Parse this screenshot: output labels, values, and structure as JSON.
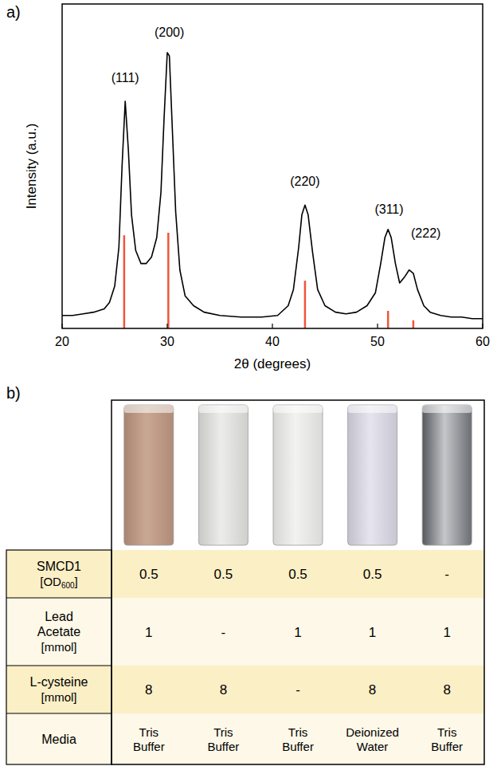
{
  "chart_data": {
    "type": "line",
    "panel_label": "a)",
    "x_label": "2θ (degrees)",
    "y_label": "Intensity (a.u.)",
    "xlim": [
      20,
      60
    ],
    "xticks": [
      20,
      30,
      40,
      50,
      60
    ],
    "ylim": [
      0,
      100
    ],
    "yticks": [],
    "tick_labels": "x",
    "grid": false,
    "series": [
      {
        "type": "bar",
        "color": "#f0553a",
        "x": [
          25.9,
          30.1,
          43.1,
          51.0,
          53.4
        ],
        "values": [
          28.7,
          29.5,
          14.7,
          5.4,
          2.5
        ]
      },
      {
        "type": "line",
        "color": "#000000",
        "x": [
          20,
          21,
          22,
          23,
          24,
          24.5,
          25,
          25.4,
          25.7,
          26.0,
          26.3,
          26.6,
          27,
          27.5,
          28,
          28.5,
          29,
          29.4,
          29.7,
          30.0,
          30.2,
          30.5,
          30.8,
          31.2,
          31.7,
          32.5,
          33.5,
          35,
          37,
          39,
          40.5,
          41.5,
          42.0,
          42.5,
          42.8,
          43.1,
          43.4,
          43.8,
          44.3,
          45,
          46,
          47,
          48,
          49,
          49.8,
          50.3,
          50.7,
          51.0,
          51.3,
          51.7,
          52.1,
          52.6,
          53.0,
          53.4,
          53.8,
          54.4,
          55,
          56,
          57,
          58,
          59,
          60
        ],
        "values": [
          4,
          4,
          4.5,
          5,
          6,
          8,
          13,
          25,
          50,
          70,
          55,
          35,
          24,
          20,
          20,
          22,
          28,
          42,
          65,
          85,
          84,
          60,
          36,
          18,
          10,
          7,
          5,
          4,
          3.5,
          3.5,
          4,
          7,
          12,
          25,
          35,
          38,
          35,
          24,
          12,
          7,
          5,
          4.5,
          5,
          7,
          11,
          20,
          28,
          30.5,
          28,
          20,
          14,
          16,
          18,
          17,
          12,
          7,
          5,
          4,
          3.5,
          3.5,
          3,
          3
        ]
      }
    ],
    "annotations": [
      {
        "x": 26.0,
        "y": 76,
        "text": "(111)"
      },
      {
        "x": 30.2,
        "y": 90,
        "text": "(200)"
      },
      {
        "x": 43.1,
        "y": 44,
        "text": "(220)"
      },
      {
        "x": 51.1,
        "y": 35.5,
        "text": "(311)"
      },
      {
        "x": 54.6,
        "y": 28,
        "text": "(222)"
      }
    ]
  },
  "table": {
    "panel_label": "b)",
    "rows": [
      {
        "name": "SMCD1",
        "unit_prefix": "[OD",
        "unit_sub": "600",
        "unit_suffix": "]",
        "cells": [
          0.5,
          0.5,
          0.5,
          0.5,
          "-"
        ]
      },
      {
        "name": "Lead Acetate",
        "unit_prefix": "[mmol]",
        "cells": [
          1,
          "-",
          1,
          1,
          1
        ]
      },
      {
        "name": "L-cysteine",
        "unit_prefix": "[mmol]",
        "cells": [
          8,
          8,
          "-",
          8,
          8
        ]
      },
      {
        "name": "Media",
        "cells": [
          "Tris Buffer",
          "Tris Buffer",
          "Tris Buffer",
          "Deionized Water",
          "Tris Buffer"
        ]
      }
    ]
  }
}
